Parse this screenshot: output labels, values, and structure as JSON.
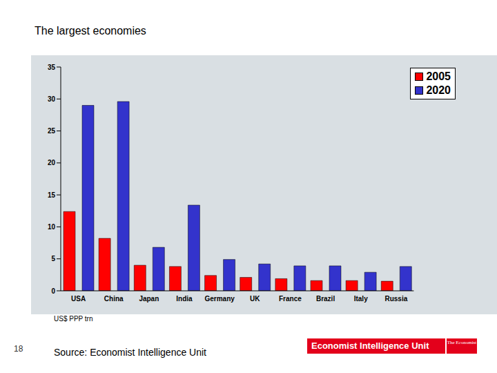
{
  "chart_data": {
    "type": "bar",
    "title": "The largest economies",
    "unit_label": "US$ PPP trn",
    "source": "Source: Economist Intelligence Unit",
    "logo": "Economist Intelligence Unit",
    "logo_mark": "The Economist",
    "page_number": 18,
    "categories": [
      "USA",
      "China",
      "Japan",
      "India",
      "Germany",
      "UK",
      "France",
      "Brazil",
      "Italy",
      "Russia"
    ],
    "series": [
      {
        "name": "2005",
        "color": "#ff0000",
        "values": [
          12.4,
          8.2,
          4.0,
          3.8,
          2.4,
          2.1,
          1.9,
          1.6,
          1.6,
          1.5
        ]
      },
      {
        "name": "2020",
        "color": "#3333cc",
        "values": [
          29.0,
          29.6,
          6.8,
          13.4,
          4.9,
          4.2,
          3.9,
          3.9,
          2.9,
          3.8
        ]
      }
    ],
    "ylim": [
      0,
      35
    ],
    "yticks": [
      0,
      5,
      10,
      15,
      20,
      25,
      30,
      35
    ],
    "grid": false,
    "legend": "top-right"
  }
}
